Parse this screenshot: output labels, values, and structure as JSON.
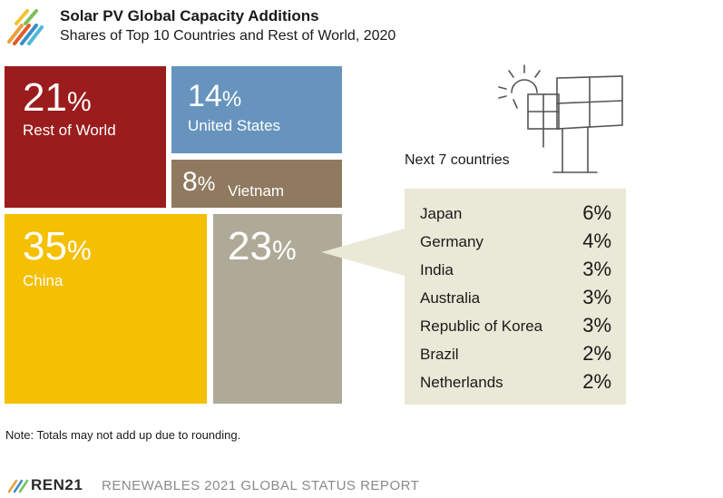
{
  "header": {
    "title": "Solar PV Global Capacity Additions",
    "subtitle": "Shares of Top 10 Countries and Rest of World, 2020"
  },
  "chart_data": {
    "type": "treemap",
    "title": "Solar PV Global Capacity Additions",
    "subtitle": "Shares of Top 10 Countries and Rest of World, 2020",
    "unit": "%",
    "tiles": [
      {
        "key": "row",
        "label": "Rest of World",
        "value": 21,
        "value_text": "21",
        "color": "#9b1c1c"
      },
      {
        "key": "us",
        "label": "United States",
        "value": 14,
        "value_text": "14",
        "color": "#6794bd"
      },
      {
        "key": "vn",
        "label": "Vietnam",
        "value": 8,
        "value_text": "8",
        "color": "#8f7a5f"
      },
      {
        "key": "cn",
        "label": "China",
        "value": 35,
        "value_text": "35",
        "color": "#f5bf02"
      },
      {
        "key": "next",
        "label": "",
        "value": 23,
        "value_text": "23",
        "color": "#aeaa97"
      }
    ],
    "breakdown_title": "Next 7 countries",
    "breakdown": [
      {
        "name": "Japan",
        "value": 6,
        "value_text": "6%"
      },
      {
        "name": "Germany",
        "value": 4,
        "value_text": "4%"
      },
      {
        "name": "India",
        "value": 3,
        "value_text": "3%"
      },
      {
        "name": "Australia",
        "value": 3,
        "value_text": "3%"
      },
      {
        "name": "Republic of Korea",
        "value": 3,
        "value_text": "3%"
      },
      {
        "name": "Brazil",
        "value": 2,
        "value_text": "2%"
      },
      {
        "name": "Netherlands",
        "value": 2,
        "value_text": "2%"
      }
    ]
  },
  "percent_symbol": "%",
  "note": "Note: Totals may not add up due to rounding.",
  "footer": {
    "brand": "REN21",
    "report": "RENEWABLES 2021 GLOBAL STATUS REPORT"
  },
  "colors": {
    "callout": "#eae8d6",
    "text": "#1a1a1a"
  },
  "icons": {
    "header_logo": "ren21-stripes-logo",
    "illustration": "solar-panel-sun-icon"
  }
}
